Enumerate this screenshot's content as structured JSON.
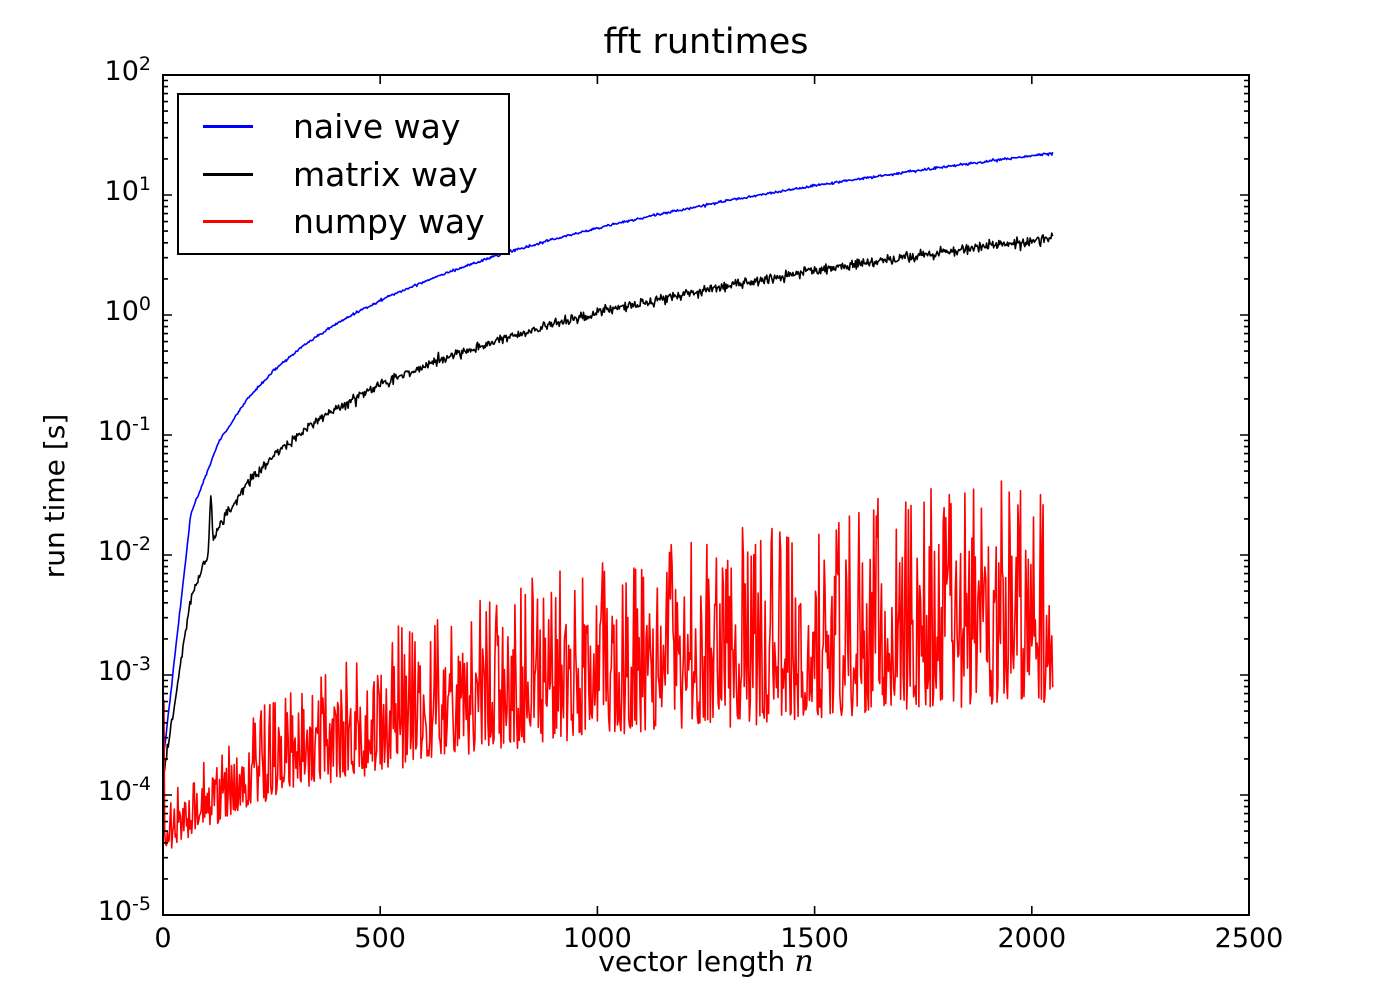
{
  "figure": {
    "title": "fft runtimes",
    "background_color": "#ffffff"
  },
  "chart_data": {
    "type": "line",
    "title": "fft runtimes",
    "xlabel": "vector length",
    "xlabel_math": "n",
    "ylabel": "run time [s]",
    "x_axis": {
      "min": 0,
      "max": 2500,
      "tick_values": [
        0,
        500,
        1000,
        1500,
        2000,
        2500
      ],
      "grid": false
    },
    "y_axis": {
      "scale": "log",
      "min": 1e-05,
      "max": 100,
      "base": "10",
      "tick_exponents": [
        2,
        1,
        0,
        -1,
        -2,
        -3,
        -4,
        -5
      ],
      "grid": false
    },
    "legend": {
      "position": "upper left",
      "entries": [
        {
          "label": "naive way",
          "color": "#0000ff"
        },
        {
          "label": "matrix way",
          "color": "#000000"
        },
        {
          "label": "numpy way",
          "color": "#ff0000"
        }
      ]
    },
    "n_range": [
      2,
      2048
    ],
    "n_step": 2,
    "series": [
      {
        "name": "naive way",
        "color": "#0000ff",
        "style": "smooth",
        "noise_rel": 0.012,
        "n": [
          2,
          64,
          128,
          192,
          256,
          320,
          384,
          448,
          512,
          640,
          768,
          896,
          1024,
          1152,
          1280,
          1408,
          1536,
          1664,
          1792,
          1920,
          2048
        ],
        "t": [
          0.00022,
          0.0219,
          0.087,
          0.1956,
          0.3476,
          0.543,
          0.7817,
          1.064,
          1.39,
          2.171,
          3.126,
          4.255,
          5.558,
          7.034,
          8.684,
          10.507,
          12.504,
          14.675,
          17.02,
          19.539,
          22.23
        ]
      },
      {
        "name": "matrix way",
        "color": "#000000",
        "style": "smooth",
        "noise_rel": 0.05,
        "spikes": [
          {
            "n": 110,
            "factor": 2.6
          }
        ],
        "n": [
          2,
          64,
          128,
          192,
          256,
          320,
          384,
          448,
          512,
          640,
          768,
          896,
          1024,
          1152,
          1280,
          1408,
          1536,
          1664,
          1792,
          1920,
          2048
        ],
        "t": [
          0.000154,
          0.00441,
          0.01719,
          0.03849,
          0.06832,
          0.10666,
          0.15353,
          0.20892,
          0.27284,
          0.42612,
          0.6135,
          0.83496,
          1.0905,
          1.3802,
          1.7039,
          2.0617,
          2.4537,
          2.8797,
          3.3398,
          3.834,
          4.3623
        ]
      },
      {
        "name": "numpy way",
        "color": "#ff0000",
        "style": "noisy-band",
        "envelope_n": [
          2,
          8,
          32,
          64,
          128,
          256,
          512,
          768,
          1024,
          1280,
          1536,
          1792,
          2048
        ],
        "lower": [
          3.3e-05,
          3.3e-05,
          3.6e-05,
          4.4e-05,
          5.8e-05,
          8.8e-05,
          0.00015,
          0.00021,
          0.00026,
          0.00032,
          0.00038,
          0.00044,
          0.0005
        ],
        "upper": [
          0.0006,
          9e-05,
          0.00011,
          0.00016,
          0.00022,
          0.00065,
          0.0024,
          0.0055,
          0.0095,
          0.015,
          0.022,
          0.04,
          0.04
        ]
      }
    ]
  }
}
